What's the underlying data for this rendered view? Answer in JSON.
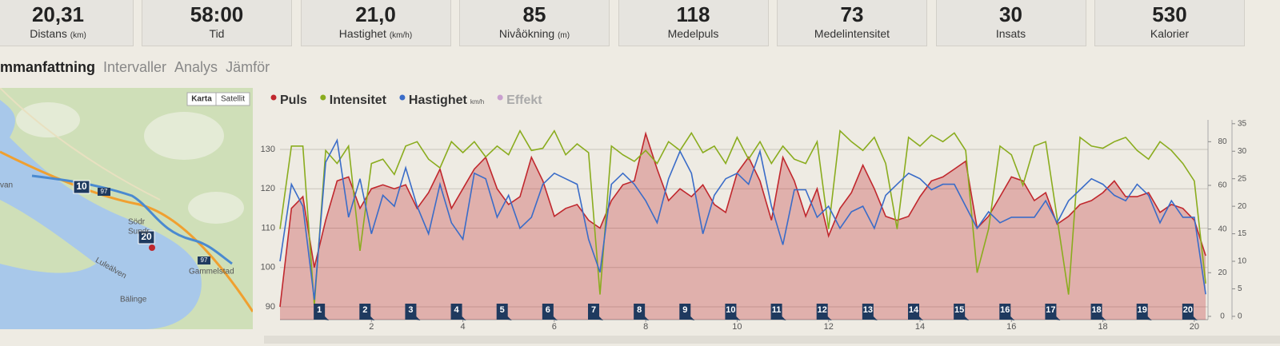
{
  "stats": [
    {
      "value": "20,31",
      "label": "Distans",
      "unit": "(km)"
    },
    {
      "value": "58:00",
      "label": "Tid"
    },
    {
      "value": "21,0",
      "label": "Hastighet",
      "unit": "(km/h)"
    },
    {
      "value": "85",
      "label": "Nivåökning",
      "unit": "(m)"
    },
    {
      "value": "118",
      "label": "Medelpuls"
    },
    {
      "value": "73",
      "label": "Medelintensitet"
    },
    {
      "value": "30",
      "label": "Insats"
    },
    {
      "value": "530",
      "label": "Kalorier"
    }
  ],
  "tabs": [
    "mmanfattning",
    "Intervaller",
    "Analys",
    "Jämför"
  ],
  "map": {
    "buttons": [
      "Karta",
      "Satellit"
    ],
    "markers": [
      "10",
      "20"
    ],
    "roads": [
      "97",
      "97"
    ],
    "places": [
      "van",
      "Södr",
      "Sundr",
      "Luleälven",
      "Gammelstad",
      "Bälinge"
    ]
  },
  "chart_data": {
    "type": "line",
    "x": [
      0,
      0.25,
      0.5,
      0.75,
      1,
      1.25,
      1.5,
      1.75,
      2,
      2.25,
      2.5,
      2.75,
      3,
      3.25,
      3.5,
      3.75,
      4,
      4.25,
      4.5,
      4.75,
      5,
      5.25,
      5.5,
      5.75,
      6,
      6.25,
      6.5,
      6.75,
      7,
      7.25,
      7.5,
      7.75,
      8,
      8.25,
      8.5,
      8.75,
      9,
      9.25,
      9.5,
      9.75,
      10,
      10.25,
      10.5,
      10.75,
      11,
      11.25,
      11.5,
      11.75,
      12,
      12.25,
      12.5,
      12.75,
      13,
      13.25,
      13.5,
      13.75,
      14,
      14.25,
      14.5,
      14.75,
      15,
      15.25,
      15.5,
      15.75,
      16,
      16.25,
      16.5,
      16.75,
      17,
      17.25,
      17.5,
      17.75,
      18,
      18.25,
      18.5,
      18.75,
      19,
      19.25,
      19.5,
      19.75,
      20,
      20.25
    ],
    "xlim": [
      0,
      20.3
    ],
    "xticks": [
      2,
      4,
      6,
      8,
      10,
      12,
      14,
      16,
      18,
      20
    ],
    "ylim": [
      86.75,
      137.5
    ],
    "yticks": [
      90,
      100,
      110,
      120,
      130
    ],
    "y2lim": [
      -1.5,
      90
    ],
    "y2ticks": [
      0,
      20,
      40,
      60,
      80
    ],
    "y3lim": [
      -0.6,
      35.7
    ],
    "y3ticks": [
      0,
      5,
      10,
      15,
      20,
      25,
      30,
      35
    ],
    "grid": true,
    "series": [
      {
        "name": "Puls",
        "color": "#c0272d",
        "area": true,
        "values": [
          90,
          115,
          118,
          100,
          112,
          122,
          123,
          115,
          120,
          121,
          120,
          121,
          115,
          119,
          125,
          115,
          120,
          125,
          128,
          120,
          116,
          118,
          128,
          122,
          113,
          115,
          116,
          112,
          110,
          117,
          121,
          122,
          134,
          125,
          117,
          120,
          118,
          121,
          116,
          114,
          124,
          128,
          122,
          112,
          128,
          122,
          113,
          120,
          108,
          115,
          119,
          126,
          120,
          113,
          112,
          113,
          118,
          122,
          123,
          125,
          127,
          110,
          113,
          118,
          123,
          122,
          117,
          119,
          111,
          113,
          116,
          117,
          119,
          122,
          118,
          118,
          119,
          114,
          116,
          115,
          112,
          103
        ]
      },
      {
        "name": "Intensitet",
        "color": "#8aac1e",
        "axis": "y2",
        "values": [
          40,
          78,
          78,
          5,
          76,
          70,
          78,
          30,
          70,
          72,
          65,
          78,
          80,
          72,
          68,
          80,
          75,
          80,
          73,
          78,
          74,
          85,
          76,
          77,
          85,
          74,
          79,
          75,
          10,
          78,
          74,
          71,
          76,
          70,
          80,
          76,
          84,
          75,
          78,
          70,
          82,
          72,
          80,
          70,
          78,
          72,
          70,
          80,
          40,
          85,
          80,
          76,
          82,
          70,
          40,
          82,
          78,
          83,
          80,
          84,
          76,
          20,
          40,
          78,
          74,
          60,
          78,
          80,
          45,
          10,
          82,
          78,
          77,
          80,
          82,
          76,
          72,
          80,
          76,
          70,
          62,
          15
        ]
      },
      {
        "name": "Hastighet",
        "unit": "km/h",
        "color": "#3a6cc8",
        "axis": "y3",
        "values": [
          10,
          24,
          20,
          3,
          28,
          32,
          18,
          25,
          15,
          22,
          20,
          27,
          20,
          15,
          24,
          17,
          14,
          26,
          25,
          18,
          22,
          16,
          18,
          24,
          26,
          25,
          24,
          14,
          8,
          24,
          26,
          24,
          21,
          17,
          25,
          30,
          26,
          15,
          22,
          25,
          26,
          24,
          30,
          20,
          13,
          23,
          23,
          18,
          20,
          16,
          19,
          20,
          16,
          22,
          24,
          26,
          25,
          23,
          24,
          24,
          20,
          16,
          19,
          17,
          18,
          18,
          18,
          21,
          17,
          21,
          23,
          25,
          24,
          22,
          21,
          24,
          22,
          17,
          21,
          18,
          18,
          4
        ]
      },
      {
        "name": "Effekt",
        "color": "#c9a0cf",
        "enabled": false
      }
    ],
    "laps": [
      1,
      2,
      3,
      4,
      5,
      6,
      7,
      8,
      9,
      10,
      11,
      12,
      13,
      14,
      15,
      16,
      17,
      18,
      19,
      20
    ]
  }
}
